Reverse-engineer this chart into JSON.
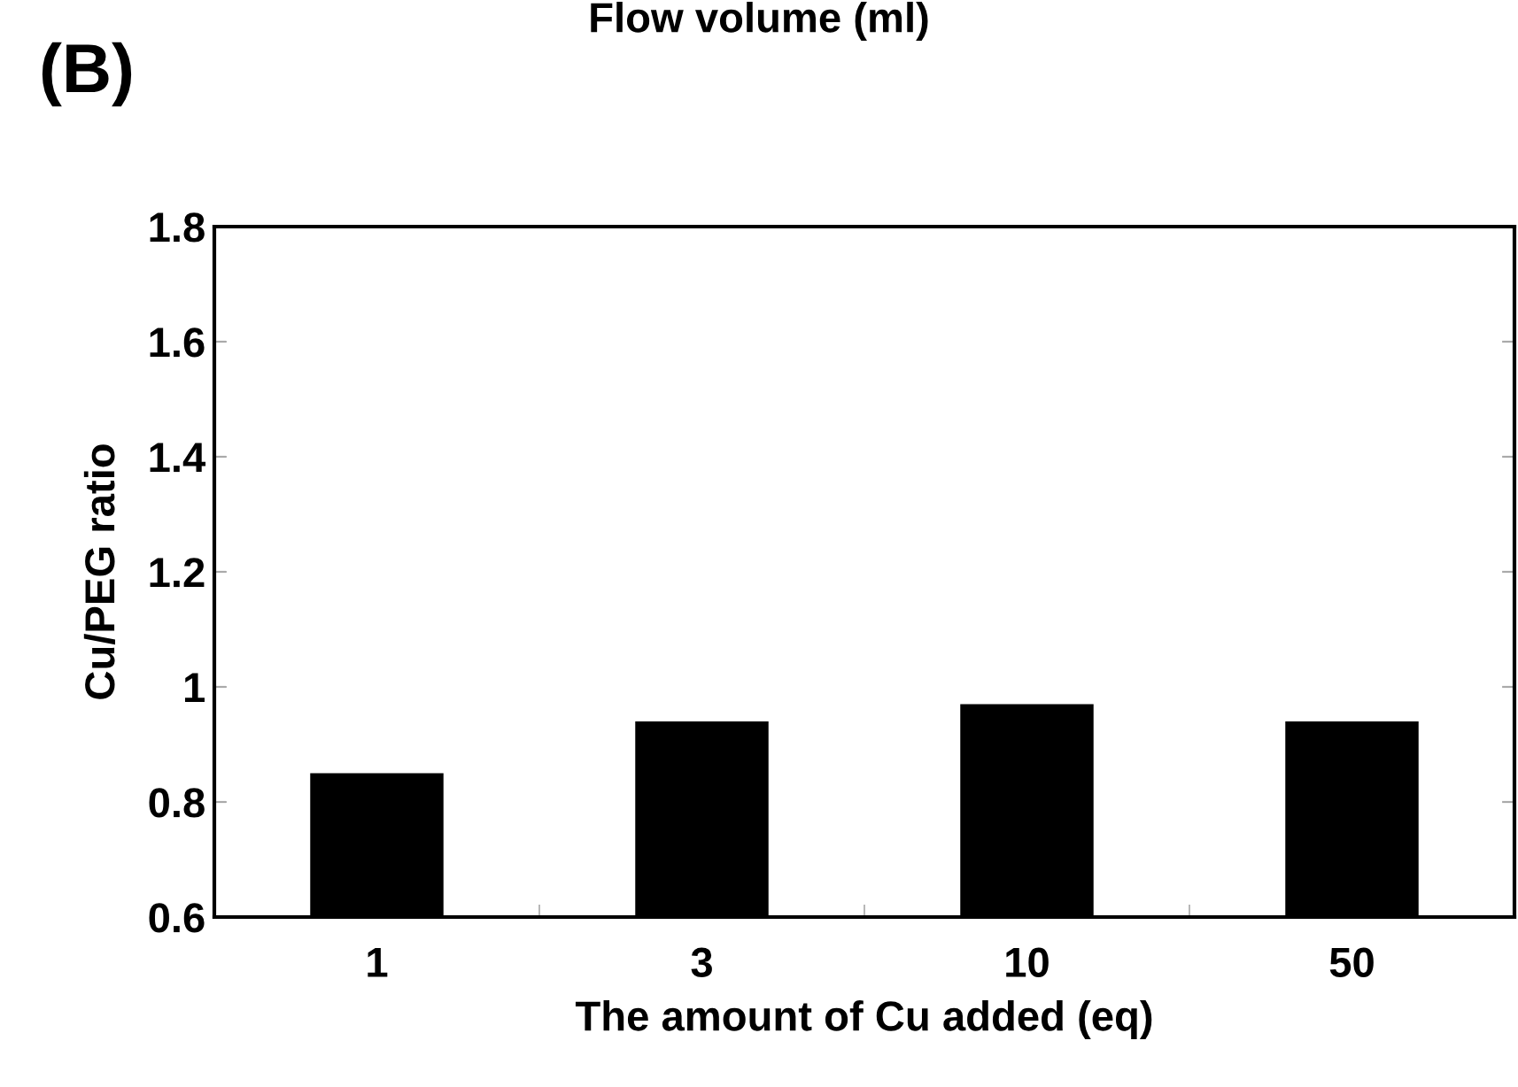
{
  "chart_data": {
    "type": "bar",
    "title": "(B)",
    "annotations": [
      "Flow volume (ml)"
    ],
    "xlabel": "The amount of Cu added (eq)",
    "ylabel": "Cu/PEG ratio",
    "categories": [
      "1",
      "3",
      "10",
      "50"
    ],
    "values": [
      0.85,
      0.94,
      0.97,
      0.94
    ],
    "color": "#000000",
    "ylim": [
      0.6,
      1.8
    ],
    "yticks": [
      0.6,
      0.8,
      {
        "value": 1,
        "label": "1"
      },
      1.2,
      1.4,
      1.6,
      1.8
    ],
    "grid": false
  }
}
